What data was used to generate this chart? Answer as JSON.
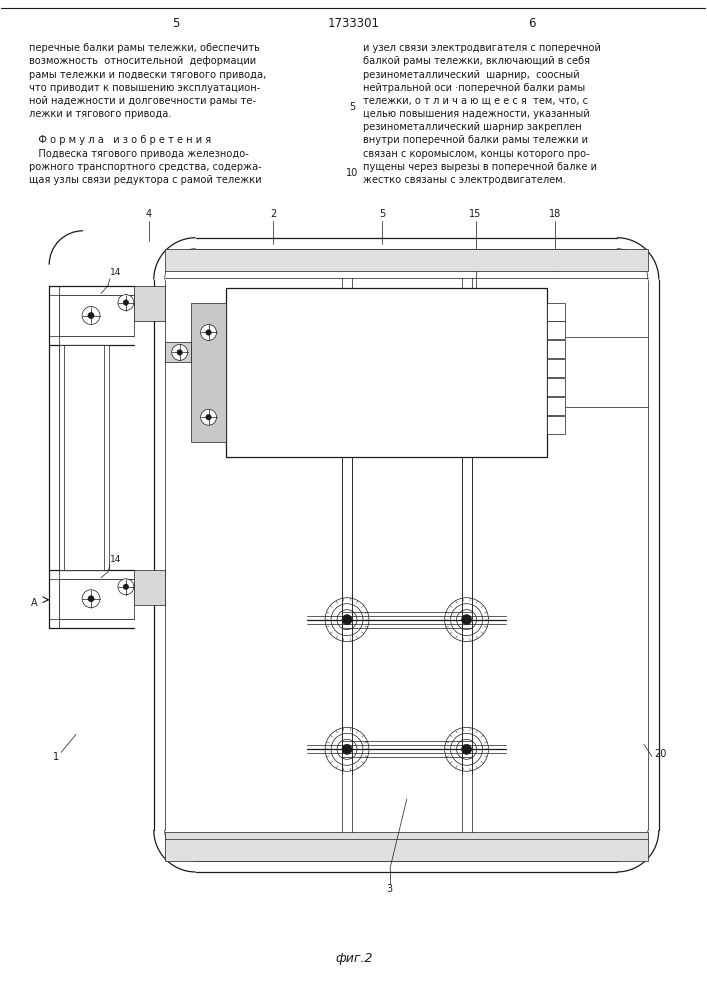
{
  "page_width": 7.07,
  "page_height": 10.0,
  "bg_color": "#ffffff",
  "line_color": "#1a1a1a",
  "text_color": "#1a1a1a",
  "left_col_lines": [
    "перечные балки рамы тележки, обеспечить",
    "возможность  относительной  деформации",
    "рамы тележки и подвески тягового привода,",
    "что приводит к повышению эксплуатацион-",
    "ной надежности и долговечности рамы те-",
    "лежки и тягового привода.",
    "",
    "   Ф о р м у л а   и з о б р е т е н и я",
    "   Подвеска тягового привода железнодо-",
    "рожного транспортного средства, содержа-",
    "щая узлы связи редуктора с рамой тележки"
  ],
  "right_col_lines": [
    "и узел связи электродвигателя с поперечной",
    "балкой рамы тележки, включающий в себя",
    "резинометаллический  шарнир,  соосный",
    "нейтральной оси ·поперечной балки рамы",
    "тележки, о т л и ч а ю щ е е с я  тем, что, с",
    "целью повышения надежности, указанный",
    "резинометаллический шарнир закреплен",
    "внутри поперечной балки рамы тележки и",
    "связан с коромыслом, концы которого про-",
    "пущены через вырезы в поперечной балке и",
    "жестко связаны с электродвигателем."
  ],
  "fig_caption": "фиг.2"
}
